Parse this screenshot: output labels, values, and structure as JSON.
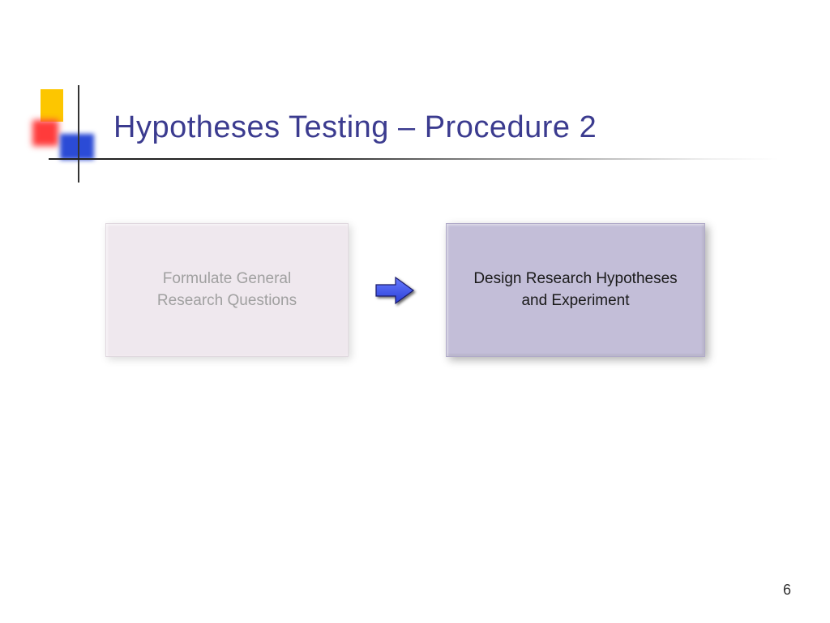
{
  "title": {
    "text": "Hypotheses Testing – Procedure 2",
    "color": "#3b3b8f",
    "fontsize": 38
  },
  "decoration": {
    "yellow": "#fdc600",
    "red": "#ff3b3b",
    "blue": "#2b4bd6"
  },
  "diagram": {
    "type": "flowchart",
    "nodes": [
      {
        "id": "box1",
        "label": "Formulate General\nResearch Questions",
        "background_color": "#efe8ee",
        "text_color": "#a0a0a0",
        "border_color": "#e0d8df",
        "faded": true
      },
      {
        "id": "box2",
        "label": "Design Research Hypotheses\nand Experiment",
        "background_color": "#c3bed8",
        "text_color": "#1a1a1a",
        "border_color": "#b0aac8",
        "faded": false
      }
    ],
    "arrow": {
      "fill_color": "#2b3fd6",
      "stroke_color": "#1a1a6b",
      "shadow_color": "#000000"
    }
  },
  "page_number": "6"
}
